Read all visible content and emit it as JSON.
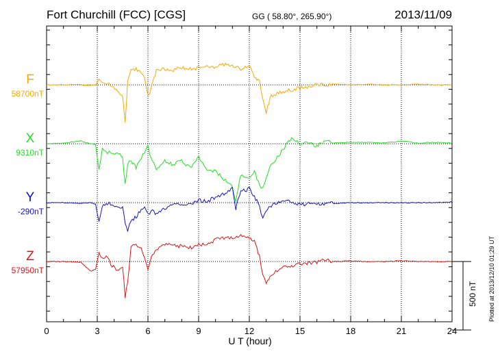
{
  "header": {
    "station": "Fort Churchill (FCC)  [CGS]",
    "coords": "GG ( 58.80°, 265.90°)",
    "date": "2013/11/09"
  },
  "footer": {
    "plotted": "Plotted at 2013/12/10 01:29 UT"
  },
  "colors": {
    "F": "#f5a800",
    "X": "#22dd22",
    "Y": "#1010cc",
    "Z": "#dd1111",
    "axis": "#000000",
    "grid": "#000000"
  },
  "chart_data": {
    "type": "line",
    "xlabel": "U T (hour)",
    "xlim": [
      0,
      24
    ],
    "xticks": [
      "0",
      "3",
      "6",
      "9",
      "12",
      "15",
      "18",
      "21",
      "24"
    ],
    "scale_bar_label": "500 nT",
    "scale_bar_nT": 500,
    "series": [
      {
        "name": "F",
        "baseline_label": "58700nT",
        "points": [
          [
            0,
            0
          ],
          [
            1,
            0
          ],
          [
            2,
            2
          ],
          [
            2.6,
            -5
          ],
          [
            2.9,
            0
          ],
          [
            3.1,
            30
          ],
          [
            3.3,
            5
          ],
          [
            3.6,
            20
          ],
          [
            3.8,
            -10
          ],
          [
            4.2,
            -40
          ],
          [
            4.5,
            -80
          ],
          [
            4.65,
            -280
          ],
          [
            4.8,
            20
          ],
          [
            5,
            110
          ],
          [
            5.3,
            120
          ],
          [
            5.6,
            90
          ],
          [
            5.8,
            40
          ],
          [
            6,
            -80
          ],
          [
            6.2,
            -20
          ],
          [
            6.5,
            100
          ],
          [
            7,
            120
          ],
          [
            7.5,
            110
          ],
          [
            8,
            125
          ],
          [
            8.5,
            115
          ],
          [
            9,
            125
          ],
          [
            9.5,
            140
          ],
          [
            10,
            130
          ],
          [
            10.5,
            150
          ],
          [
            11,
            145
          ],
          [
            11.5,
            120
          ],
          [
            12,
            140
          ],
          [
            12.3,
            60
          ],
          [
            12.6,
            20
          ],
          [
            12.8,
            -90
          ],
          [
            13,
            -200
          ],
          [
            13.3,
            -80
          ],
          [
            14,
            -50
          ],
          [
            15,
            -20
          ],
          [
            15.5,
            -10
          ],
          [
            16,
            10
          ],
          [
            16.5,
            -5
          ],
          [
            17,
            5
          ],
          [
            18,
            0
          ],
          [
            19,
            5
          ],
          [
            20,
            0
          ],
          [
            21,
            0
          ],
          [
            22,
            5
          ],
          [
            23,
            0
          ],
          [
            24,
            0
          ]
        ]
      },
      {
        "name": "X",
        "baseline_label": "9310nT",
        "points": [
          [
            0,
            0
          ],
          [
            1,
            5
          ],
          [
            2,
            20
          ],
          [
            2.6,
            0
          ],
          [
            2.9,
            -5
          ],
          [
            3.1,
            -200
          ],
          [
            3.3,
            -40
          ],
          [
            3.6,
            -70
          ],
          [
            3.8,
            -60
          ],
          [
            4.2,
            -70
          ],
          [
            4.5,
            -100
          ],
          [
            4.65,
            -300
          ],
          [
            4.8,
            -150
          ],
          [
            5,
            -120
          ],
          [
            5.3,
            -180
          ],
          [
            5.6,
            -100
          ],
          [
            5.8,
            -60
          ],
          [
            6,
            -10
          ],
          [
            6.2,
            -120
          ],
          [
            6.5,
            -180
          ],
          [
            7,
            -130
          ],
          [
            7.5,
            -150
          ],
          [
            8,
            -120
          ],
          [
            8.5,
            -180
          ],
          [
            9,
            -100
          ],
          [
            9.5,
            -180
          ],
          [
            10,
            -200
          ],
          [
            10.5,
            -260
          ],
          [
            11,
            -320
          ],
          [
            11.2,
            -420
          ],
          [
            11.5,
            -220
          ],
          [
            12,
            -260
          ],
          [
            12.3,
            -200
          ],
          [
            12.6,
            -300
          ],
          [
            12.8,
            -330
          ],
          [
            13,
            -250
          ],
          [
            13.3,
            -150
          ],
          [
            14,
            -40
          ],
          [
            14.5,
            40
          ],
          [
            15,
            0
          ],
          [
            15.5,
            10
          ],
          [
            16,
            -20
          ],
          [
            16.5,
            20
          ],
          [
            17,
            5
          ],
          [
            18,
            10
          ],
          [
            19,
            10
          ],
          [
            20,
            5
          ],
          [
            21,
            20
          ],
          [
            22,
            5
          ],
          [
            23,
            10
          ],
          [
            24,
            5
          ]
        ]
      },
      {
        "name": "Y",
        "baseline_label": "-290nT",
        "points": [
          [
            0,
            0
          ],
          [
            1,
            0
          ],
          [
            2,
            -5
          ],
          [
            2.6,
            0
          ],
          [
            2.9,
            -10
          ],
          [
            3.1,
            -150
          ],
          [
            3.3,
            -20
          ],
          [
            3.6,
            -10
          ],
          [
            3.8,
            -10
          ],
          [
            4.2,
            -40
          ],
          [
            4.5,
            -30
          ],
          [
            4.65,
            -160
          ],
          [
            4.8,
            -200
          ],
          [
            5,
            -140
          ],
          [
            5.3,
            -100
          ],
          [
            5.6,
            -60
          ],
          [
            5.8,
            -20
          ],
          [
            6,
            -90
          ],
          [
            6.2,
            -60
          ],
          [
            6.5,
            -80
          ],
          [
            7,
            -40
          ],
          [
            7.5,
            -20
          ],
          [
            8,
            -10
          ],
          [
            8.5,
            -20
          ],
          [
            9,
            20
          ],
          [
            9.5,
            10
          ],
          [
            10,
            40
          ],
          [
            10.5,
            60
          ],
          [
            11,
            100
          ],
          [
            11.2,
            -40
          ],
          [
            11.5,
            80
          ],
          [
            12,
            100
          ],
          [
            12.3,
            40
          ],
          [
            12.6,
            -20
          ],
          [
            12.8,
            -120
          ],
          [
            13,
            -60
          ],
          [
            13.3,
            -20
          ],
          [
            14,
            20
          ],
          [
            14.5,
            10
          ],
          [
            15,
            -20
          ],
          [
            15.5,
            0
          ],
          [
            16,
            -10
          ],
          [
            16.5,
            -10
          ],
          [
            17,
            -5
          ],
          [
            18,
            0
          ],
          [
            19,
            0
          ],
          [
            20,
            0
          ],
          [
            21,
            0
          ],
          [
            22,
            0
          ],
          [
            23,
            0
          ],
          [
            24,
            5
          ]
        ]
      },
      {
        "name": "Z",
        "baseline_label": "57950nT",
        "points": [
          [
            0,
            0
          ],
          [
            1,
            0
          ],
          [
            2,
            -5
          ],
          [
            2.6,
            -70
          ],
          [
            2.9,
            -60
          ],
          [
            3.1,
            60
          ],
          [
            3.3,
            20
          ],
          [
            3.6,
            40
          ],
          [
            3.8,
            -20
          ],
          [
            4.2,
            -60
          ],
          [
            4.5,
            -30
          ],
          [
            4.65,
            -260
          ],
          [
            4.8,
            -150
          ],
          [
            5,
            110
          ],
          [
            5.3,
            120
          ],
          [
            5.6,
            100
          ],
          [
            5.8,
            40
          ],
          [
            6,
            -60
          ],
          [
            6.2,
            40
          ],
          [
            6.5,
            90
          ],
          [
            7,
            130
          ],
          [
            7.5,
            120
          ],
          [
            8,
            110
          ],
          [
            8.5,
            100
          ],
          [
            9,
            130
          ],
          [
            9.5,
            120
          ],
          [
            10,
            160
          ],
          [
            10.5,
            170
          ],
          [
            11,
            180
          ],
          [
            11.5,
            190
          ],
          [
            12,
            170
          ],
          [
            12.3,
            150
          ],
          [
            12.6,
            40
          ],
          [
            12.8,
            -100
          ],
          [
            13,
            -160
          ],
          [
            13.3,
            -100
          ],
          [
            14,
            -40
          ],
          [
            14.5,
            -30
          ],
          [
            15,
            -15
          ],
          [
            15.5,
            -10
          ],
          [
            16,
            -5
          ],
          [
            16.5,
            10
          ],
          [
            17,
            0
          ],
          [
            18,
            5
          ],
          [
            19,
            0
          ],
          [
            20,
            0
          ],
          [
            21,
            5
          ],
          [
            22,
            0
          ],
          [
            23,
            0
          ],
          [
            24,
            0
          ]
        ]
      }
    ]
  }
}
